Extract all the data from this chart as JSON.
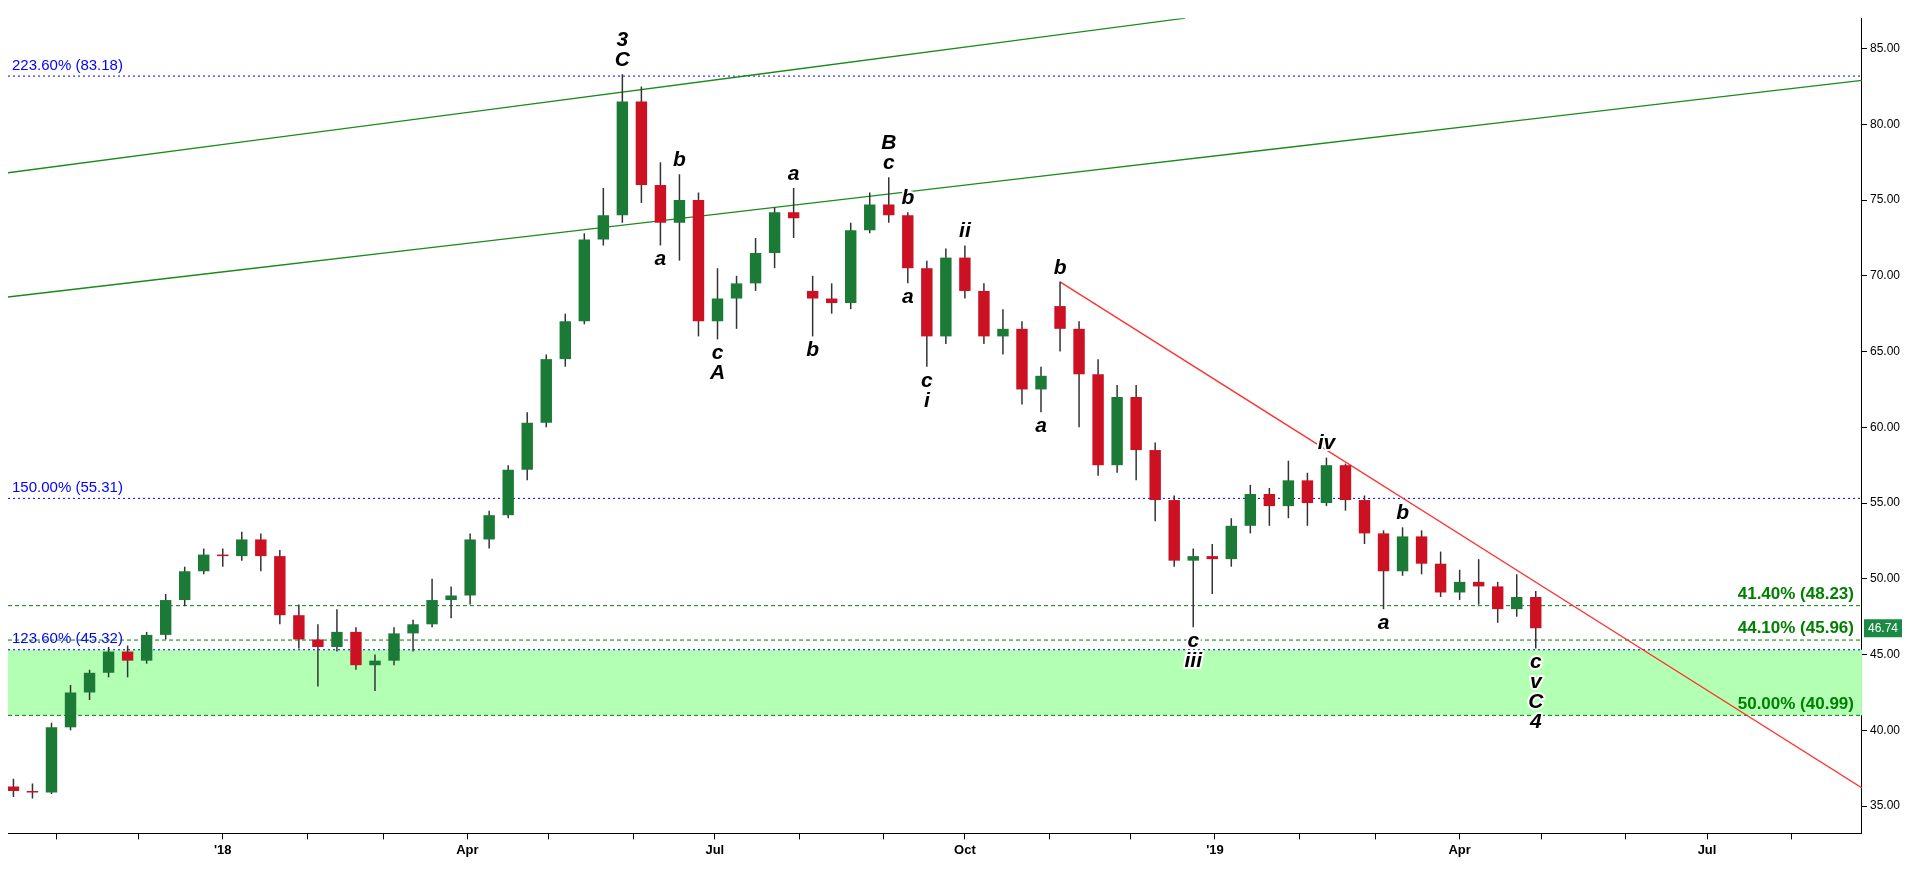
{
  "chart_data": {
    "type": "candlestick",
    "x": [
      "2017-10-16",
      "2017-10-23",
      "2017-10-30",
      "2017-11-06",
      "2017-11-13",
      "2017-11-20",
      "2017-11-27",
      "2017-12-04",
      "2017-12-11",
      "2017-12-18",
      "2017-12-25",
      "2018-01-01",
      "2018-01-08",
      "2018-01-15",
      "2018-01-22",
      "2018-01-29",
      "2018-02-05",
      "2018-02-12",
      "2018-02-19",
      "2018-02-26",
      "2018-03-05",
      "2018-03-12",
      "2018-03-19",
      "2018-03-26",
      "2018-04-02",
      "2018-04-09",
      "2018-04-16",
      "2018-04-23",
      "2018-04-30",
      "2018-05-07",
      "2018-05-14",
      "2018-05-21",
      "2018-05-28",
      "2018-06-04",
      "2018-06-11",
      "2018-06-18",
      "2018-06-25",
      "2018-07-02",
      "2018-07-09",
      "2018-07-16",
      "2018-07-23",
      "2018-07-30",
      "2018-08-06",
      "2018-08-13",
      "2018-08-20",
      "2018-08-27",
      "2018-09-03",
      "2018-09-10",
      "2018-09-17",
      "2018-09-24",
      "2018-10-01",
      "2018-10-08",
      "2018-10-15",
      "2018-10-22",
      "2018-10-29",
      "2018-11-05",
      "2018-11-12",
      "2018-11-19",
      "2018-11-26",
      "2018-12-03",
      "2018-12-10",
      "2018-12-17",
      "2018-12-24",
      "2018-12-31",
      "2019-01-07",
      "2019-01-14",
      "2019-01-21",
      "2019-01-28",
      "2019-02-04",
      "2019-02-11",
      "2019-02-18",
      "2019-02-25",
      "2019-03-04",
      "2019-03-11",
      "2019-03-18",
      "2019-03-25",
      "2019-04-01",
      "2019-04-08",
      "2019-04-15",
      "2019-04-22",
      "2019-04-29"
    ],
    "ohlc": [
      [
        36.3,
        36.8,
        35.6,
        36.0
      ],
      [
        36.0,
        36.5,
        35.5,
        35.9
      ],
      [
        35.9,
        40.5,
        35.8,
        40.2
      ],
      [
        40.2,
        43,
        40,
        42.5
      ],
      [
        42.5,
        44,
        42,
        43.8
      ],
      [
        43.8,
        45.5,
        43.5,
        45.2
      ],
      [
        45.2,
        45.6,
        43.5,
        44.6
      ],
      [
        44.6,
        46.5,
        44.4,
        46.3
      ],
      [
        46.3,
        49,
        46.0,
        48.6
      ],
      [
        48.6,
        50.8,
        48.2,
        50.5
      ],
      [
        50.5,
        52,
        50.3,
        51.6
      ],
      [
        51.6,
        52,
        50.8,
        51.5
      ],
      [
        51.5,
        53.1,
        51.2,
        52.6
      ],
      [
        52.6,
        53.0,
        50.5,
        51.5
      ],
      [
        51.5,
        51.9,
        47.0,
        47.6
      ],
      [
        47.6,
        48.3,
        45.4,
        46.0
      ],
      [
        46.0,
        47,
        42.9,
        45.5
      ],
      [
        45.5,
        48,
        45.2,
        46.5
      ],
      [
        46.5,
        46.8,
        44.0,
        44.3
      ],
      [
        44.3,
        45,
        42.6,
        44.6
      ],
      [
        44.6,
        46.8,
        44.3,
        46.4
      ],
      [
        46.4,
        47.3,
        45.2,
        47
      ],
      [
        47,
        50,
        46.8,
        48.6
      ],
      [
        48.6,
        49.5,
        47.4,
        48.9
      ],
      [
        48.9,
        53,
        48.3,
        52.6
      ],
      [
        52.6,
        54.5,
        52,
        54.2
      ],
      [
        54.2,
        57.5,
        54,
        57.2
      ],
      [
        57.2,
        61,
        56.5,
        60.3
      ],
      [
        60.3,
        64.8,
        60,
        64.5
      ],
      [
        64.5,
        67.5,
        64,
        67
      ],
      [
        67,
        72.8,
        66.8,
        72.4
      ],
      [
        72.4,
        75.8,
        72,
        74
      ],
      [
        74,
        83.3,
        73.5,
        81.5
      ],
      [
        81.5,
        82.5,
        74.8,
        76
      ],
      [
        76,
        77.5,
        72,
        73.5
      ],
      [
        73.5,
        76.7,
        71,
        75
      ],
      [
        75,
        75.5,
        66,
        67
      ],
      [
        67,
        70.5,
        65.8,
        68.5
      ],
      [
        68.5,
        70,
        66.5,
        69.5
      ],
      [
        69.5,
        72.5,
        69,
        71.5
      ],
      [
        71.5,
        74.5,
        70.5,
        74.2
      ],
      [
        74.2,
        75.8,
        72.5,
        73.8
      ],
      [
        69,
        70,
        66,
        68.5
      ],
      [
        68.5,
        69.5,
        67.5,
        68.2
      ],
      [
        68.2,
        73.5,
        67.8,
        73
      ],
      [
        73,
        75.5,
        72.8,
        74.7
      ],
      [
        74.7,
        76.5,
        73.5,
        74
      ],
      [
        74,
        74.2,
        69.5,
        70.5
      ],
      [
        70.5,
        71,
        64,
        66
      ],
      [
        66,
        71.8,
        65.5,
        71.2
      ],
      [
        71.2,
        72,
        68.5,
        69
      ],
      [
        69,
        69.5,
        65.5,
        66
      ],
      [
        66,
        67.8,
        64.8,
        66.5
      ],
      [
        66.5,
        67,
        61.5,
        62.5
      ],
      [
        62.5,
        64,
        61,
        63.4
      ],
      [
        68,
        69.6,
        65,
        66.5
      ],
      [
        66.5,
        67,
        60,
        63.5
      ],
      [
        63.5,
        64.5,
        56.8,
        57.5
      ],
      [
        57.5,
        62.8,
        57,
        62
      ],
      [
        62,
        62.8,
        56.5,
        58.5
      ],
      [
        58.5,
        59,
        53.8,
        55.2
      ],
      [
        55.2,
        55.5,
        50.8,
        51.2
      ],
      [
        51.2,
        52,
        46.8,
        51.5
      ],
      [
        51.5,
        52.3,
        49,
        51.3
      ],
      [
        51.3,
        54,
        50.8,
        53.5
      ],
      [
        53.5,
        56.2,
        53,
        55.6
      ],
      [
        55.6,
        56,
        53.5,
        54.8
      ],
      [
        54.8,
        57.8,
        54,
        56.5
      ],
      [
        56.5,
        57,
        53.5,
        55
      ],
      [
        55,
        58,
        54.8,
        57.5
      ],
      [
        57.5,
        57.6,
        54.5,
        55.2
      ],
      [
        55.2,
        55.5,
        52.3,
        53
      ],
      [
        53,
        53.2,
        48,
        50.5
      ],
      [
        50.5,
        53.4,
        50.2,
        52.8
      ],
      [
        52.8,
        53.2,
        50.3,
        51
      ],
      [
        51,
        51.8,
        48.8,
        49.1
      ],
      [
        49.1,
        50.6,
        48.6,
        49.8
      ],
      [
        49.8,
        51.3,
        48.3,
        49.5
      ],
      [
        49.5,
        49.8,
        47.1,
        48
      ],
      [
        48,
        50.3,
        47.5,
        48.8
      ],
      [
        48.8,
        49.2,
        45.4,
        46.74
      ]
    ],
    "series": [
      {
        "type": "line",
        "x": [
          "2017-10-14",
          "2018-12-21"
        ],
        "values": [
          76.8,
          87.0
        ],
        "color": "#1a8a1a"
      },
      {
        "type": "line",
        "x": [
          "2017-10-14",
          "2019-08-27"
        ],
        "values": [
          68.6,
          82.9
        ],
        "color": "#1a8a1a"
      },
      {
        "type": "line",
        "x": [
          "2018-11-05",
          "2019-08-27"
        ],
        "values": [
          69.6,
          36.2
        ],
        "color": "#ff3030"
      }
    ],
    "marker": "none",
    "xlim": [
      "2017-10-14",
      "2019-08-27"
    ],
    "ylim": [
      33.2,
      87.0
    ],
    "xticks": [
      {
        "value": "2017-11-01",
        "label": null
      },
      {
        "value": "2017-12-01",
        "label": null
      },
      {
        "value": "2018-01-01",
        "label": "'18"
      },
      {
        "value": "2018-02-01",
        "label": null
      },
      {
        "value": "2018-03-01",
        "label": null
      },
      {
        "value": "2018-04-01",
        "label": "Apr"
      },
      {
        "value": "2018-05-01",
        "label": null
      },
      {
        "value": "2018-06-01",
        "label": null
      },
      {
        "value": "2018-07-01",
        "label": "Jul"
      },
      {
        "value": "2018-08-01",
        "label": null
      },
      {
        "value": "2018-09-01",
        "label": null
      },
      {
        "value": "2018-10-01",
        "label": "Oct"
      },
      {
        "value": "2018-11-01",
        "label": null
      },
      {
        "value": "2018-12-01",
        "label": null
      },
      {
        "value": "2019-01-01",
        "label": "'19"
      },
      {
        "value": "2019-02-01",
        "label": null
      },
      {
        "value": "2019-03-01",
        "label": null
      },
      {
        "value": "2019-04-01",
        "label": "Apr"
      },
      {
        "value": "2019-05-01",
        "label": null
      },
      {
        "value": "2019-06-01",
        "label": null
      },
      {
        "value": "2019-07-01",
        "label": "Jul"
      },
      {
        "value": "2019-08-01",
        "label": null
      }
    ],
    "yticks": [
      {
        "value": 35,
        "label": "35.00"
      },
      {
        "value": 40,
        "label": "40.00"
      },
      {
        "value": 45,
        "label": "45.00"
      },
      {
        "value": 50,
        "label": "50.00"
      },
      {
        "value": 55,
        "label": "55.00"
      },
      {
        "value": 60,
        "label": "60.00"
      },
      {
        "value": 65,
        "label": "65.00"
      },
      {
        "value": 70,
        "label": "70.00"
      },
      {
        "value": 75,
        "label": "75.00"
      },
      {
        "value": 80,
        "label": "80.00"
      },
      {
        "value": 85,
        "label": "85.00"
      }
    ],
    "grid": false,
    "bands": [
      {
        "axis": "y",
        "from": 40.99,
        "to": 45.32,
        "color": "#b3ffb3"
      }
    ],
    "ref_lines": [
      {
        "axis": "y",
        "value": 83.18,
        "label": "223.60% (83.18)",
        "color": "#0000ff",
        "line_style": "dotted"
      },
      {
        "axis": "y",
        "value": 55.31,
        "label": "150.00% (55.31)",
        "color": "#0000ff",
        "line_style": "dotted"
      },
      {
        "axis": "y",
        "value": 45.32,
        "label": "123.60% (45.32)",
        "color": "#0000ff",
        "line_style": "dotted"
      },
      {
        "axis": "y",
        "value": 48.23,
        "label": "41.40% (48.23)",
        "color": "#008000",
        "line_style": "dashed"
      },
      {
        "axis": "y",
        "value": 45.96,
        "label": "44.10% (45.96)",
        "color": "#008000",
        "line_style": "dashed"
      },
      {
        "axis": "y",
        "value": 40.99,
        "label": "50.00% (40.99)",
        "color": "#008000",
        "line_style": "dashed"
      }
    ],
    "annotations": [
      {
        "text": "3",
        "x": "2018-05-28",
        "y": 83.3
      },
      {
        "text": "C",
        "x": "2018-05-28",
        "y": 83.3
      },
      {
        "text": "b",
        "x": "2018-06-18",
        "y": 76.7
      },
      {
        "text": "a",
        "x": "2018-06-11",
        "y": 72
      },
      {
        "text": "c",
        "x": "2018-07-02",
        "y": 65.8
      },
      {
        "text": "A",
        "x": "2018-07-02",
        "y": 65.8
      },
      {
        "text": "a",
        "x": "2018-07-30",
        "y": 75.8
      },
      {
        "text": "b",
        "x": "2018-08-06",
        "y": 66
      },
      {
        "text": "B",
        "x": "2018-09-03",
        "y": 76.5
      },
      {
        "text": "c",
        "x": "2018-09-03",
        "y": 76.5
      },
      {
        "text": "b",
        "x": "2018-09-10",
        "y": 74.2
      },
      {
        "text": "a",
        "x": "2018-09-10",
        "y": 69.5
      },
      {
        "text": "ii",
        "x": "2018-10-01",
        "y": 72
      },
      {
        "text": "c",
        "x": "2018-09-17",
        "y": 64
      },
      {
        "text": "i",
        "x": "2018-09-17",
        "y": 64
      },
      {
        "text": "a",
        "x": "2018-10-29",
        "y": 61
      },
      {
        "text": "b",
        "x": "2018-11-05",
        "y": 69.6
      },
      {
        "text": "iv",
        "x": "2019-02-11",
        "y": 58
      },
      {
        "text": "c",
        "x": "2018-12-24",
        "y": 46.8
      },
      {
        "text": "iii",
        "x": "2018-12-24",
        "y": 46.8
      },
      {
        "text": "a",
        "x": "2019-03-04",
        "y": 48
      },
      {
        "text": "b",
        "x": "2019-03-11",
        "y": 53.4
      },
      {
        "text": "c",
        "x": "2019-04-29",
        "y": 45.4
      },
      {
        "text": "v",
        "x": "2019-04-29",
        "y": 45.4
      },
      {
        "text": "C",
        "x": "2019-04-29",
        "y": 45.4
      },
      {
        "text": "4",
        "x": "2019-04-29",
        "y": 45.4
      },
      {
        "text": "46.74",
        "y": 46.74
      }
    ]
  }
}
